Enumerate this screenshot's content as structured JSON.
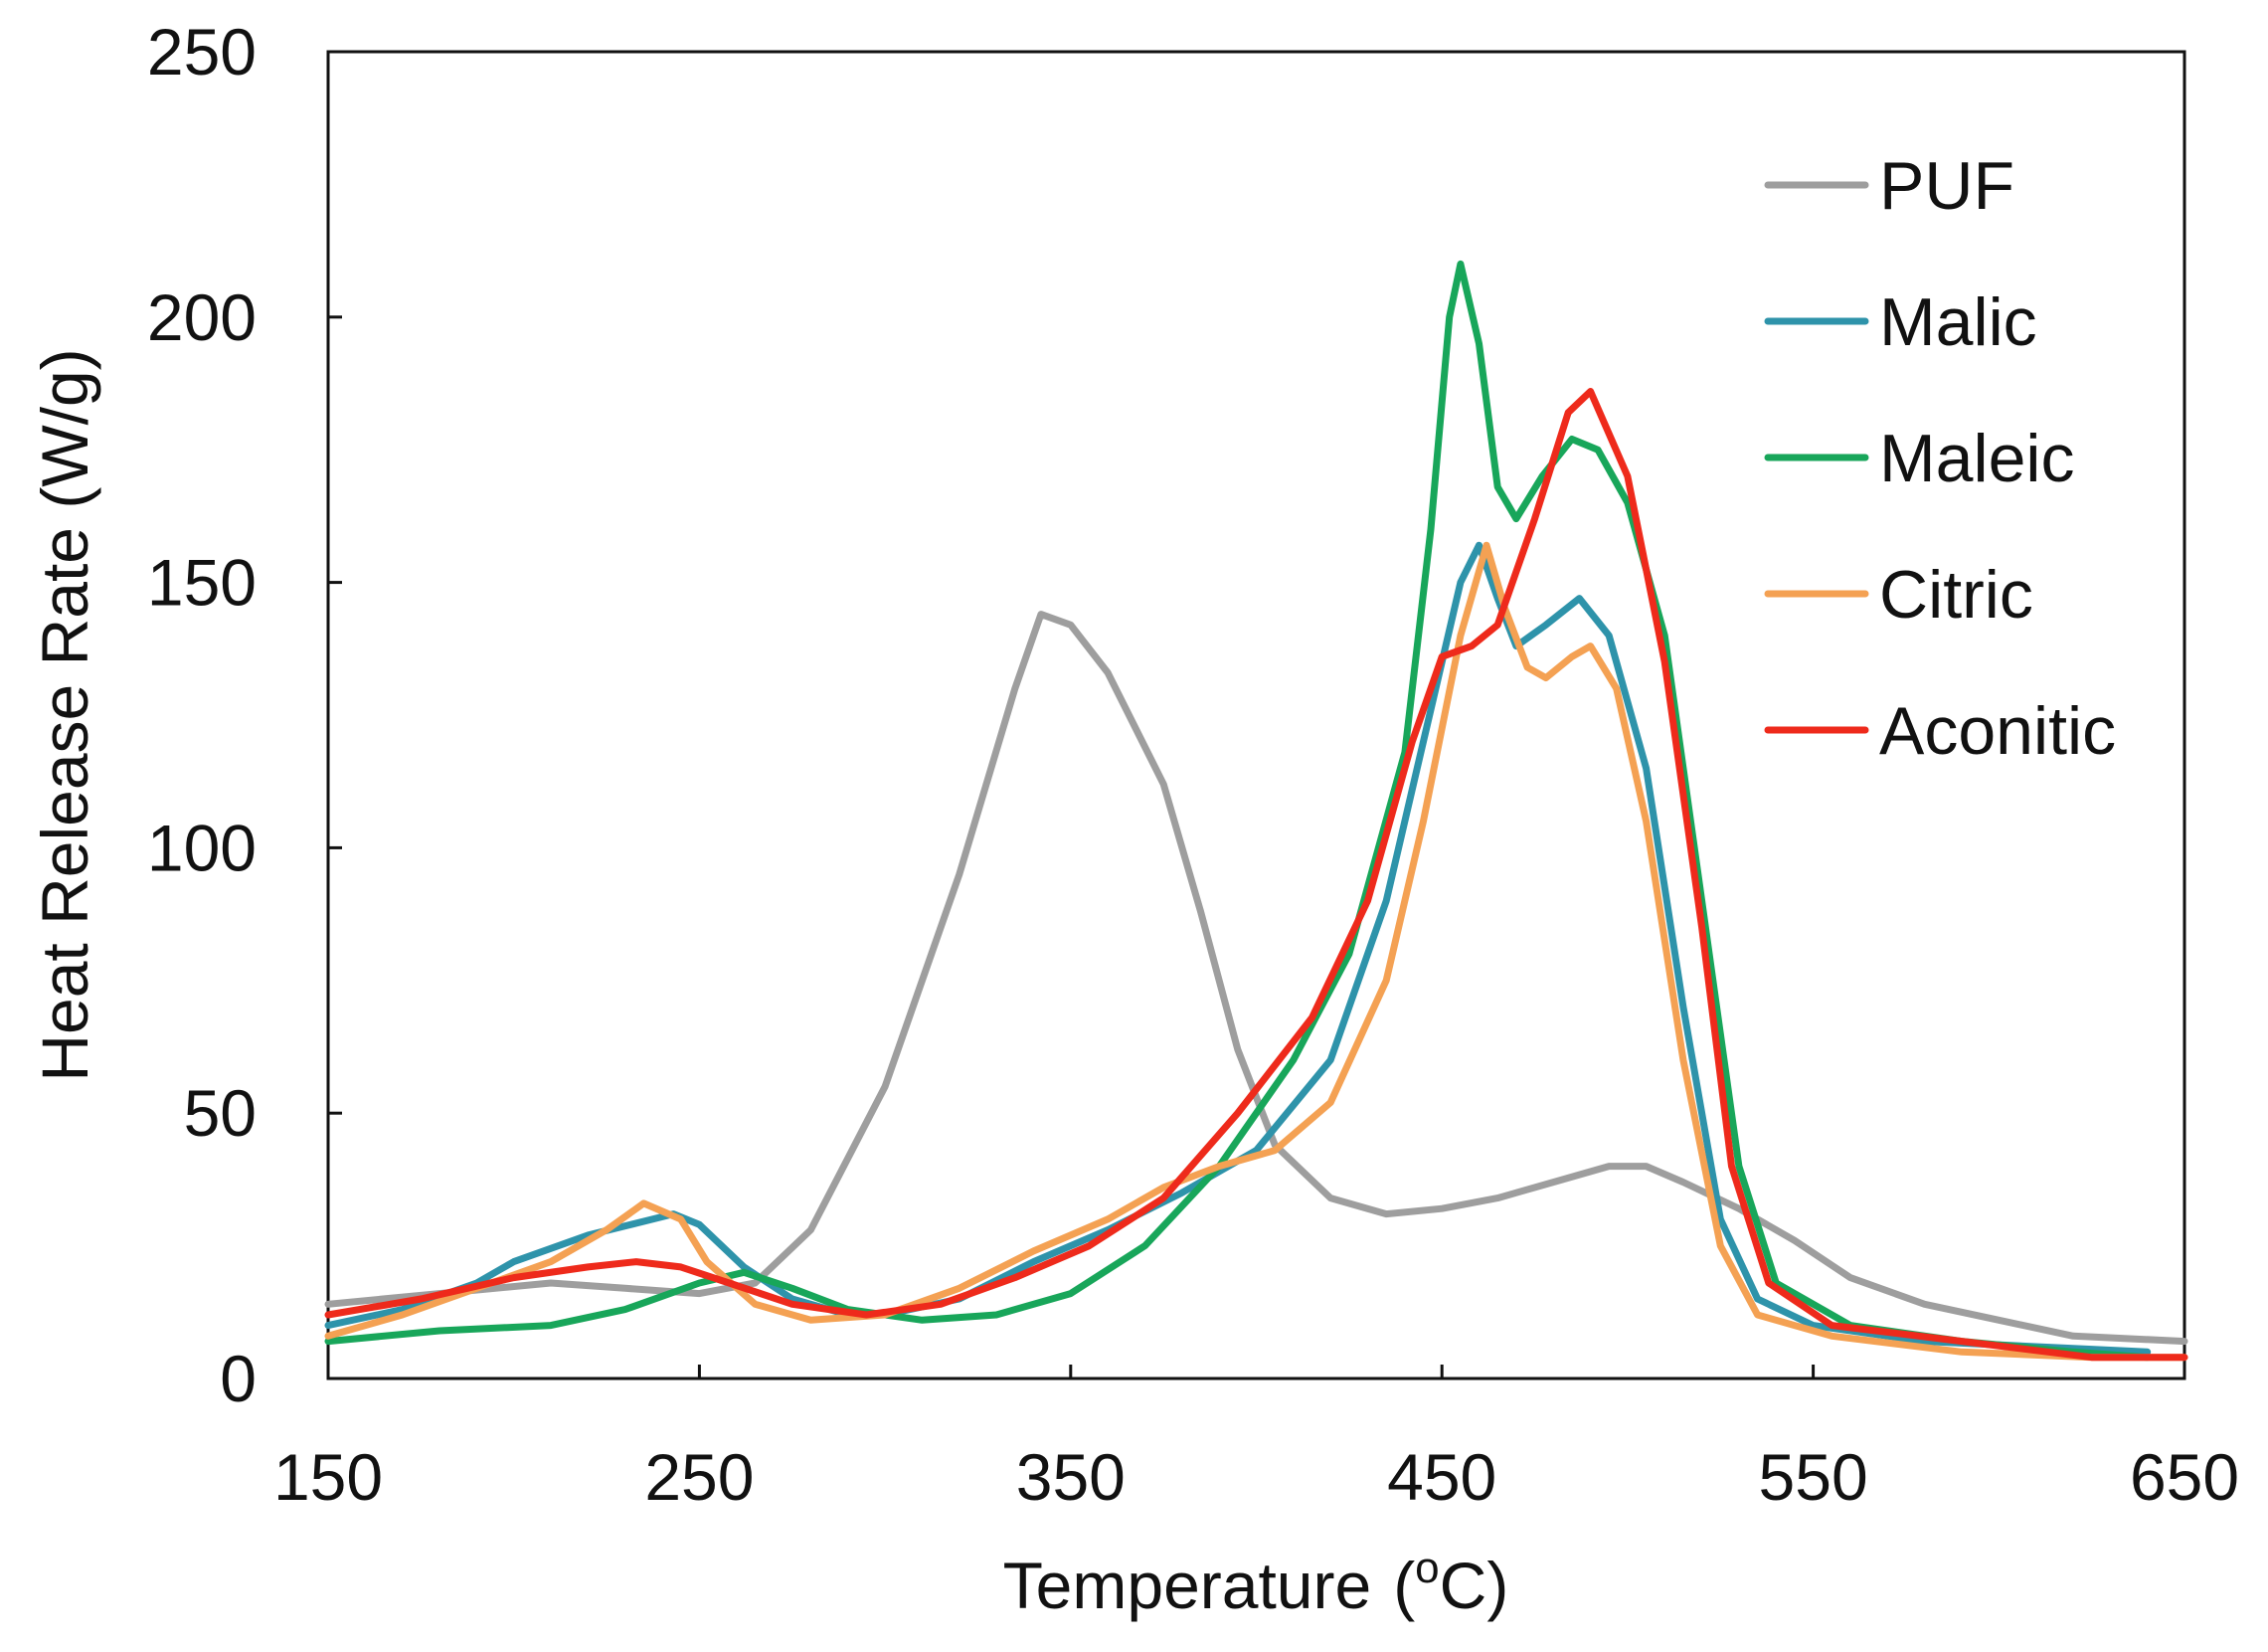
{
  "chart_data": {
    "type": "line",
    "title": "",
    "xlabel": "Temperature",
    "xlabel_unit_prefix": "(",
    "xlabel_unit_sup": "o",
    "xlabel_unit_suffix": "C)",
    "ylabel": "Heat Release Rate (W/g)",
    "xlim": [
      150,
      650
    ],
    "ylim": [
      0,
      250
    ],
    "x_ticks": [
      150,
      250,
      350,
      450,
      550,
      650
    ],
    "y_ticks": [
      0,
      50,
      100,
      150,
      200,
      250
    ],
    "legend_position": "top-right",
    "grid": false,
    "series": [
      {
        "name": "PUF",
        "color": "#9e9e9e",
        "points": [
          [
            150,
            14
          ],
          [
            180,
            16
          ],
          [
            210,
            18
          ],
          [
            230,
            17
          ],
          [
            250,
            16
          ],
          [
            265,
            18
          ],
          [
            280,
            28
          ],
          [
            300,
            55
          ],
          [
            320,
            95
          ],
          [
            335,
            130
          ],
          [
            342,
            144
          ],
          [
            350,
            142
          ],
          [
            360,
            133
          ],
          [
            375,
            112
          ],
          [
            385,
            88
          ],
          [
            395,
            62
          ],
          [
            405,
            44
          ],
          [
            420,
            34
          ],
          [
            435,
            31
          ],
          [
            450,
            32
          ],
          [
            465,
            34
          ],
          [
            480,
            37
          ],
          [
            495,
            40
          ],
          [
            505,
            40
          ],
          [
            515,
            37
          ],
          [
            530,
            32
          ],
          [
            545,
            26
          ],
          [
            560,
            19
          ],
          [
            580,
            14
          ],
          [
            600,
            11
          ],
          [
            620,
            8
          ],
          [
            650,
            7
          ]
        ]
      },
      {
        "name": "Malic",
        "color": "#2e93aa",
        "points": [
          [
            150,
            10
          ],
          [
            170,
            13
          ],
          [
            190,
            18
          ],
          [
            200,
            22
          ],
          [
            220,
            27
          ],
          [
            243,
            31
          ],
          [
            250,
            29
          ],
          [
            262,
            21
          ],
          [
            275,
            15
          ],
          [
            290,
            12
          ],
          [
            300,
            12
          ],
          [
            320,
            15
          ],
          [
            340,
            22
          ],
          [
            360,
            28
          ],
          [
            380,
            35
          ],
          [
            400,
            43
          ],
          [
            420,
            60
          ],
          [
            435,
            90
          ],
          [
            445,
            120
          ],
          [
            455,
            150
          ],
          [
            460,
            157
          ],
          [
            465,
            147
          ],
          [
            470,
            138
          ],
          [
            478,
            142
          ],
          [
            487,
            147
          ],
          [
            495,
            140
          ],
          [
            505,
            115
          ],
          [
            515,
            70
          ],
          [
            525,
            30
          ],
          [
            535,
            15
          ],
          [
            550,
            10
          ],
          [
            580,
            7
          ],
          [
            610,
            6
          ],
          [
            640,
            5
          ]
        ]
      },
      {
        "name": "Maleic",
        "color": "#18a65a",
        "points": [
          [
            150,
            7
          ],
          [
            180,
            9
          ],
          [
            210,
            10
          ],
          [
            230,
            13
          ],
          [
            250,
            18
          ],
          [
            262,
            20
          ],
          [
            275,
            17
          ],
          [
            290,
            13
          ],
          [
            310,
            11
          ],
          [
            330,
            12
          ],
          [
            350,
            16
          ],
          [
            370,
            25
          ],
          [
            390,
            40
          ],
          [
            410,
            60
          ],
          [
            425,
            80
          ],
          [
            440,
            118
          ],
          [
            447,
            160
          ],
          [
            452,
            200
          ],
          [
            455,
            210
          ],
          [
            460,
            195
          ],
          [
            465,
            168
          ],
          [
            470,
            162
          ],
          [
            477,
            170
          ],
          [
            485,
            177
          ],
          [
            492,
            175
          ],
          [
            500,
            165
          ],
          [
            510,
            140
          ],
          [
            520,
            90
          ],
          [
            530,
            40
          ],
          [
            540,
            18
          ],
          [
            560,
            10
          ],
          [
            590,
            7
          ],
          [
            620,
            5
          ],
          [
            640,
            4
          ]
        ]
      },
      {
        "name": "Citric",
        "color": "#f4a153",
        "points": [
          [
            150,
            8
          ],
          [
            170,
            12
          ],
          [
            190,
            17
          ],
          [
            210,
            22
          ],
          [
            225,
            28
          ],
          [
            235,
            33
          ],
          [
            245,
            30
          ],
          [
            252,
            22
          ],
          [
            265,
            14
          ],
          [
            280,
            11
          ],
          [
            300,
            12
          ],
          [
            320,
            17
          ],
          [
            340,
            24
          ],
          [
            360,
            30
          ],
          [
            375,
            36
          ],
          [
            390,
            40
          ],
          [
            405,
            43
          ],
          [
            420,
            52
          ],
          [
            435,
            75
          ],
          [
            445,
            105
          ],
          [
            455,
            140
          ],
          [
            462,
            157
          ],
          [
            467,
            145
          ],
          [
            473,
            134
          ],
          [
            478,
            132
          ],
          [
            485,
            136
          ],
          [
            490,
            138
          ],
          [
            497,
            130
          ],
          [
            505,
            105
          ],
          [
            515,
            60
          ],
          [
            525,
            25
          ],
          [
            535,
            12
          ],
          [
            555,
            8
          ],
          [
            590,
            5
          ],
          [
            625,
            4
          ],
          [
            650,
            4
          ]
        ]
      },
      {
        "name": "Aconitic",
        "color": "#ee2a1b",
        "points": [
          [
            150,
            12
          ],
          [
            175,
            15
          ],
          [
            200,
            19
          ],
          [
            220,
            21
          ],
          [
            233,
            22
          ],
          [
            245,
            21
          ],
          [
            258,
            18
          ],
          [
            275,
            14
          ],
          [
            295,
            12
          ],
          [
            315,
            14
          ],
          [
            335,
            19
          ],
          [
            355,
            25
          ],
          [
            375,
            34
          ],
          [
            395,
            50
          ],
          [
            415,
            68
          ],
          [
            430,
            90
          ],
          [
            442,
            120
          ],
          [
            450,
            136
          ],
          [
            458,
            138
          ],
          [
            465,
            142
          ],
          [
            475,
            162
          ],
          [
            484,
            182
          ],
          [
            490,
            186
          ],
          [
            500,
            170
          ],
          [
            510,
            135
          ],
          [
            520,
            85
          ],
          [
            528,
            40
          ],
          [
            538,
            18
          ],
          [
            555,
            10
          ],
          [
            590,
            7
          ],
          [
            625,
            4
          ],
          [
            650,
            4
          ]
        ]
      }
    ]
  }
}
